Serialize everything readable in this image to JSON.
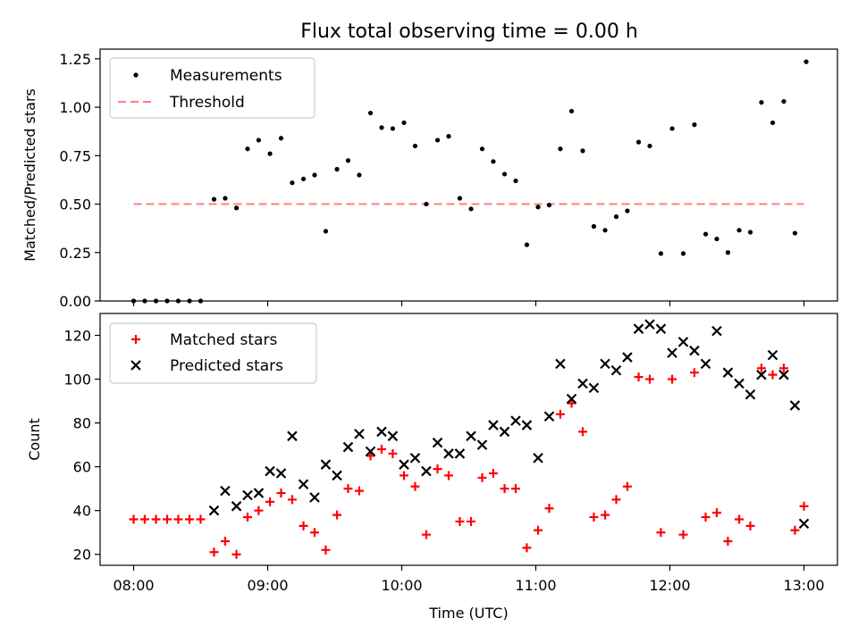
{
  "title": "Flux total observing time = 0.00 h",
  "colors": {
    "measurement": "#000000",
    "threshold": "#ff7f7f",
    "matched": "#ff0000",
    "predicted": "#000000"
  },
  "chart_data": [
    {
      "type": "scatter",
      "title": "Flux total observing time = 0.00 h",
      "ylabel": "Matched/Predicted stars",
      "xlim": [
        -0.25,
        5.25
      ],
      "ylim": [
        0,
        1.3
      ],
      "yticks": [
        "0.00",
        "0.25",
        "0.50",
        "0.75",
        "1.00",
        "1.25"
      ],
      "x_unit": "hours since 08:00 (UTC)",
      "legend": {
        "position": "top-left",
        "entries": [
          "Measurements",
          "Threshold"
        ]
      },
      "threshold": {
        "name": "Threshold",
        "y": 0.5,
        "x": [
          0.0,
          5.0
        ],
        "style": "dashed"
      },
      "series": [
        {
          "name": "Measurements",
          "marker": "dot",
          "points": [
            [
              0.0,
              0.0
            ],
            [
              0.083,
              0.0
            ],
            [
              0.167,
              0.0
            ],
            [
              0.25,
              0.0
            ],
            [
              0.333,
              0.0
            ],
            [
              0.417,
              0.0
            ],
            [
              0.5,
              0.0
            ],
            [
              0.6,
              0.525
            ],
            [
              0.683,
              0.53
            ],
            [
              0.767,
              0.48
            ],
            [
              0.85,
              0.785
            ],
            [
              0.933,
              0.83
            ],
            [
              1.017,
              0.76
            ],
            [
              1.1,
              0.84
            ],
            [
              1.183,
              0.61
            ],
            [
              1.267,
              0.63
            ],
            [
              1.35,
              0.65
            ],
            [
              1.433,
              0.36
            ],
            [
              1.517,
              0.68
            ],
            [
              1.6,
              0.725
            ],
            [
              1.683,
              0.65
            ],
            [
              1.767,
              0.97
            ],
            [
              1.85,
              0.895
            ],
            [
              1.933,
              0.89
            ],
            [
              2.017,
              0.92
            ],
            [
              2.1,
              0.8
            ],
            [
              2.183,
              0.5
            ],
            [
              2.267,
              0.83
            ],
            [
              2.35,
              0.85
            ],
            [
              2.433,
              0.53
            ],
            [
              2.517,
              0.475
            ],
            [
              2.6,
              0.785
            ],
            [
              2.683,
              0.72
            ],
            [
              2.767,
              0.655
            ],
            [
              2.85,
              0.62
            ],
            [
              2.933,
              0.29
            ],
            [
              3.017,
              0.485
            ],
            [
              3.1,
              0.495
            ],
            [
              3.183,
              0.785
            ],
            [
              3.267,
              0.98
            ],
            [
              3.35,
              0.775
            ],
            [
              3.433,
              0.385
            ],
            [
              3.517,
              0.365
            ],
            [
              3.6,
              0.435
            ],
            [
              3.683,
              0.465
            ],
            [
              3.767,
              0.82
            ],
            [
              3.85,
              0.8
            ],
            [
              3.933,
              0.245
            ],
            [
              4.017,
              0.89
            ],
            [
              4.1,
              0.245
            ],
            [
              4.183,
              0.91
            ],
            [
              4.267,
              0.345
            ],
            [
              4.35,
              0.32
            ],
            [
              4.433,
              0.25
            ],
            [
              4.517,
              0.365
            ],
            [
              4.6,
              0.355
            ],
            [
              4.683,
              1.025
            ],
            [
              4.767,
              0.92
            ],
            [
              4.85,
              1.03
            ],
            [
              4.933,
              0.35
            ],
            [
              5.017,
              1.235
            ]
          ]
        }
      ]
    },
    {
      "type": "scatter",
      "xlabel": "Time (UTC)",
      "ylabel": "Count",
      "xlim": [
        -0.25,
        5.25
      ],
      "ylim": [
        15,
        130
      ],
      "xticks": [
        "08:00",
        "09:00",
        "10:00",
        "11:00",
        "12:00",
        "13:00"
      ],
      "yticks": [
        "20",
        "40",
        "60",
        "80",
        "100",
        "120"
      ],
      "legend": {
        "position": "top-left",
        "entries": [
          "Matched stars",
          "Predicted stars"
        ]
      },
      "series": [
        {
          "name": "Matched stars",
          "marker": "plus",
          "points": [
            [
              0.0,
              36
            ],
            [
              0.083,
              36
            ],
            [
              0.167,
              36
            ],
            [
              0.25,
              36
            ],
            [
              0.333,
              36
            ],
            [
              0.417,
              36
            ],
            [
              0.5,
              36
            ],
            [
              0.6,
              21
            ],
            [
              0.683,
              26
            ],
            [
              0.767,
              20
            ],
            [
              0.85,
              37
            ],
            [
              0.933,
              40
            ],
            [
              1.017,
              44
            ],
            [
              1.1,
              48
            ],
            [
              1.183,
              45
            ],
            [
              1.267,
              33
            ],
            [
              1.35,
              30
            ],
            [
              1.433,
              22
            ],
            [
              1.517,
              38
            ],
            [
              1.6,
              50
            ],
            [
              1.683,
              49
            ],
            [
              1.767,
              65
            ],
            [
              1.85,
              68
            ],
            [
              1.933,
              66
            ],
            [
              2.017,
              56
            ],
            [
              2.1,
              51
            ],
            [
              2.183,
              29
            ],
            [
              2.267,
              59
            ],
            [
              2.35,
              56
            ],
            [
              2.433,
              35
            ],
            [
              2.517,
              35
            ],
            [
              2.6,
              55
            ],
            [
              2.683,
              57
            ],
            [
              2.767,
              50
            ],
            [
              2.85,
              50
            ],
            [
              2.933,
              23
            ],
            [
              3.017,
              31
            ],
            [
              3.1,
              41
            ],
            [
              3.183,
              84
            ],
            [
              3.267,
              89
            ],
            [
              3.35,
              76
            ],
            [
              3.433,
              37
            ],
            [
              3.517,
              38
            ],
            [
              3.6,
              45
            ],
            [
              3.683,
              51
            ],
            [
              3.767,
              101
            ],
            [
              3.85,
              100
            ],
            [
              3.933,
              30
            ],
            [
              4.017,
              100
            ],
            [
              4.1,
              29
            ],
            [
              4.183,
              103
            ],
            [
              4.267,
              37
            ],
            [
              4.35,
              39
            ],
            [
              4.433,
              26
            ],
            [
              4.517,
              36
            ],
            [
              4.6,
              33
            ],
            [
              4.683,
              105
            ],
            [
              4.767,
              102
            ],
            [
              4.85,
              105
            ],
            [
              4.933,
              31
            ],
            [
              5.0,
              42
            ]
          ]
        },
        {
          "name": "Predicted stars",
          "marker": "x",
          "points": [
            [
              0.6,
              40
            ],
            [
              0.683,
              49
            ],
            [
              0.767,
              42
            ],
            [
              0.85,
              47
            ],
            [
              0.933,
              48
            ],
            [
              1.017,
              58
            ],
            [
              1.1,
              57
            ],
            [
              1.183,
              74
            ],
            [
              1.267,
              52
            ],
            [
              1.35,
              46
            ],
            [
              1.433,
              61
            ],
            [
              1.517,
              56
            ],
            [
              1.6,
              69
            ],
            [
              1.683,
              75
            ],
            [
              1.767,
              67
            ],
            [
              1.85,
              76
            ],
            [
              1.933,
              74
            ],
            [
              2.017,
              61
            ],
            [
              2.1,
              64
            ],
            [
              2.183,
              58
            ],
            [
              2.267,
              71
            ],
            [
              2.35,
              66
            ],
            [
              2.433,
              66
            ],
            [
              2.517,
              74
            ],
            [
              2.6,
              70
            ],
            [
              2.683,
              79
            ],
            [
              2.767,
              76
            ],
            [
              2.85,
              81
            ],
            [
              2.933,
              79
            ],
            [
              3.017,
              64
            ],
            [
              3.1,
              83
            ],
            [
              3.183,
              107
            ],
            [
              3.267,
              91
            ],
            [
              3.35,
              98
            ],
            [
              3.433,
              96
            ],
            [
              3.517,
              107
            ],
            [
              3.6,
              104
            ],
            [
              3.683,
              110
            ],
            [
              3.767,
              123
            ],
            [
              3.85,
              125
            ],
            [
              3.933,
              123
            ],
            [
              4.017,
              112
            ],
            [
              4.1,
              117
            ],
            [
              4.183,
              113
            ],
            [
              4.267,
              107
            ],
            [
              4.35,
              122
            ],
            [
              4.433,
              103
            ],
            [
              4.517,
              98
            ],
            [
              4.6,
              93
            ],
            [
              4.683,
              102
            ],
            [
              4.767,
              111
            ],
            [
              4.85,
              102
            ],
            [
              4.933,
              88
            ],
            [
              5.0,
              34
            ]
          ]
        }
      ]
    }
  ]
}
